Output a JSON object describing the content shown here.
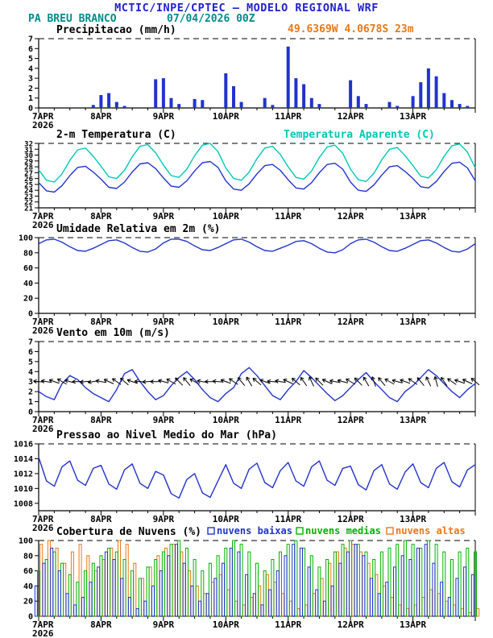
{
  "header": {
    "title": "MCTIC/INPE/CPTEC — MODELO REGIONAL WRF",
    "station": "PA BREU BRANCO",
    "run": "07/04/2026 00Z",
    "location": "49.6369W 4.0678S 23m"
  },
  "colors": {
    "header_blue": "#2222cc",
    "teal": "#008b8b",
    "orange": "#e87818",
    "line_blue": "#2233cc",
    "apparent_cyan": "#00c8b4",
    "cloud_green": "#00b400"
  },
  "x_axis": {
    "day_labels": [
      "7APR",
      "8APR",
      "9APR",
      "10APR",
      "11APR",
      "12APR",
      "13APR"
    ],
    "year_label": "2026",
    "hours_total": 168,
    "dt_hours": 3
  },
  "chart_data": [
    {
      "id": "precipitation",
      "type": "bar",
      "title": "Precipitacao (mm/h)",
      "ylim": [
        0,
        7
      ],
      "yticks": [
        0,
        1,
        2,
        3,
        4,
        5,
        6,
        7
      ],
      "series": [
        {
          "name": "precipitacao",
          "color": "#2233cc",
          "values": [
            0,
            0,
            0,
            0,
            0,
            0,
            0,
            0.3,
            1.3,
            1.5,
            0.6,
            0.2,
            0,
            0,
            0,
            2.9,
            3.0,
            1.0,
            0.4,
            0,
            0.9,
            0.8,
            0,
            0,
            3.5,
            2.2,
            0.6,
            0,
            0,
            1.0,
            0.3,
            0,
            6.2,
            3.0,
            2.4,
            1.0,
            0.4,
            0,
            0,
            0,
            2.8,
            1.2,
            0.4,
            0,
            0,
            0.6,
            0.2,
            0,
            1.2,
            2.6,
            4.0,
            3.2,
            1.5,
            0.8,
            0.4,
            0.2,
            0
          ]
        }
      ]
    },
    {
      "id": "temperature",
      "type": "line",
      "title": "2-m Temperatura (C)",
      "title2": "Temperatura Aparente (C)",
      "ylim": [
        21,
        32
      ],
      "yticks": [
        21,
        22,
        23,
        24,
        25,
        26,
        27,
        28,
        29,
        30,
        31,
        32
      ],
      "series": [
        {
          "name": "2-m temperatura",
          "color": "#2233cc",
          "values": [
            25.3,
            23.9,
            23.7,
            24.8,
            26.5,
            27.9,
            28.1,
            27.1,
            25.9,
            24.5,
            24.3,
            25.4,
            27.1,
            28.5,
            28.7,
            27.7,
            26.1,
            24.7,
            24.5,
            25.6,
            27.3,
            28.7,
            28.9,
            27.9,
            25.6,
            24.2,
            24.0,
            25.1,
            26.8,
            28.2,
            28.4,
            27.4,
            25.8,
            24.4,
            24.2,
            25.3,
            27.0,
            28.4,
            28.6,
            27.6,
            25.4,
            24.0,
            23.8,
            24.9,
            26.6,
            28.0,
            28.2,
            27.2,
            26.0,
            24.6,
            24.4,
            25.5,
            27.2,
            28.6,
            28.8,
            27.8,
            25.6
          ]
        },
        {
          "name": "temperatura aparente",
          "color": "#00c8b4",
          "values": [
            27.5,
            25.7,
            25.4,
            26.8,
            29.1,
            30.9,
            31.2,
            29.8,
            28.1,
            26.3,
            26.0,
            27.4,
            29.7,
            31.5,
            31.8,
            30.4,
            28.3,
            26.5,
            26.2,
            27.6,
            29.9,
            31.7,
            32.0,
            30.6,
            27.8,
            26.0,
            25.7,
            27.1,
            29.4,
            31.2,
            31.5,
            30.1,
            28.0,
            26.2,
            25.9,
            27.3,
            29.6,
            31.4,
            31.7,
            30.3,
            27.6,
            25.8,
            25.5,
            26.9,
            29.2,
            31.0,
            31.3,
            29.9,
            28.2,
            26.4,
            26.1,
            27.5,
            29.8,
            31.6,
            31.9,
            30.5,
            27.8
          ]
        }
      ]
    },
    {
      "id": "humidity",
      "type": "line",
      "title": "Umidade Relativa em 2m (%)",
      "ylim": [
        0,
        100
      ],
      "yticks": [
        0,
        20,
        40,
        60,
        80,
        100
      ],
      "series": [
        {
          "name": "umidade relativa",
          "color": "#2233cc",
          "values": [
            92,
            97,
            98,
            94,
            88,
            83,
            82,
            86,
            91,
            96,
            97,
            93,
            87,
            82,
            81,
            85,
            93,
            98,
            98,
            95,
            89,
            84,
            83,
            87,
            92,
            97,
            98,
            94,
            88,
            83,
            82,
            86,
            90,
            95,
            96,
            92,
            86,
            81,
            80,
            84,
            92,
            97,
            98,
            94,
            88,
            83,
            82,
            86,
            91,
            96,
            97,
            93,
            87,
            82,
            81,
            85,
            92
          ]
        }
      ]
    },
    {
      "id": "wind",
      "type": "line",
      "title": "Vento em 10m (m/s)",
      "ylim": [
        0,
        7
      ],
      "yticks": [
        0,
        1,
        2,
        3,
        4,
        5,
        6,
        7
      ],
      "barb_level": 3,
      "wind_direction_deg": [
        95,
        100,
        110,
        120,
        105,
        90,
        85,
        80,
        100,
        115,
        125,
        130,
        110,
        95,
        85,
        90,
        105,
        120,
        135,
        140,
        120,
        100,
        90,
        95,
        110,
        125,
        140,
        150,
        130,
        110,
        95,
        100,
        115,
        130,
        145,
        155,
        135,
        115,
        100,
        105,
        120,
        135,
        150,
        160,
        140,
        120,
        105,
        110,
        125,
        140,
        155,
        165,
        145,
        125,
        110,
        115,
        130
      ],
      "series": [
        {
          "name": "velocidade do vento",
          "color": "#2233cc",
          "values": [
            2.0,
            1.5,
            1.2,
            2.8,
            3.6,
            3.2,
            2.4,
            1.8,
            1.4,
            1.0,
            2.2,
            3.8,
            4.2,
            3.0,
            2.0,
            1.2,
            1.6,
            2.6,
            3.4,
            4.0,
            3.2,
            2.2,
            1.4,
            1.0,
            1.8,
            2.4,
            3.8,
            4.4,
            3.6,
            2.6,
            1.6,
            1.2,
            2.2,
            3.0,
            4.1,
            3.4,
            2.6,
            1.8,
            1.1,
            1.6,
            2.4,
            3.2,
            3.9,
            3.0,
            2.2,
            1.4,
            1.0,
            2.0,
            2.6,
            3.4,
            4.2,
            3.6,
            2.8,
            2.0,
            1.4,
            2.2,
            2.8
          ]
        }
      ]
    },
    {
      "id": "pressure",
      "type": "line",
      "title": "Pressao ao Nivel Medio do Mar (hPa)",
      "ylim": [
        1007,
        1016
      ],
      "yticks": [
        1008,
        1010,
        1012,
        1014,
        1016
      ],
      "series": [
        {
          "name": "pressao nivel do mar",
          "color": "#2233cc",
          "values": [
            1014.2,
            1011.0,
            1010.3,
            1012.9,
            1013.7,
            1011.1,
            1010.4,
            1012.7,
            1013.1,
            1010.6,
            1009.9,
            1012.5,
            1013.3,
            1010.7,
            1010.0,
            1012.3,
            1011.8,
            1009.3,
            1008.7,
            1011.2,
            1012.0,
            1009.4,
            1008.8,
            1011.0,
            1013.2,
            1010.7,
            1010.0,
            1012.6,
            1013.4,
            1010.8,
            1010.1,
            1012.4,
            1013.5,
            1011.0,
            1010.3,
            1012.9,
            1013.7,
            1011.1,
            1010.4,
            1012.7,
            1013.0,
            1010.5,
            1009.8,
            1012.4,
            1013.2,
            1010.6,
            1009.9,
            1012.2,
            1013.3,
            1010.8,
            1010.1,
            1012.7,
            1013.5,
            1010.9,
            1010.2,
            1012.5,
            1013.2
          ]
        }
      ]
    },
    {
      "id": "clouds",
      "type": "bar",
      "title": "Cobertura de Nuvens (%)",
      "ylim": [
        0,
        100
      ],
      "yticks": [
        0,
        20,
        40,
        60,
        80,
        100
      ],
      "legend": [
        {
          "label": "nuvens baixas",
          "color": "#2233cc"
        },
        {
          "label": "nuvens medias",
          "color": "#00b400"
        },
        {
          "label": "nuvens altas",
          "color": "#e87818"
        }
      ],
      "series": [
        {
          "name": "nuvens altas",
          "color": "#e87818",
          "offset": 3.2,
          "values": [
            95,
            100,
            90,
            70,
            85,
            95,
            80,
            60,
            75,
            90,
            100,
            95,
            70,
            50,
            65,
            80,
            90,
            95,
            85,
            60,
            40,
            30,
            45,
            55,
            35,
            20,
            15,
            25,
            40,
            55,
            45,
            30,
            20,
            10,
            15,
            30,
            50,
            70,
            85,
            90,
            95,
            85,
            70,
            55,
            40,
            25,
            15,
            10,
            15,
            25,
            35,
            30,
            20,
            15,
            10,
            5,
            10
          ]
        },
        {
          "name": "nuvens medias",
          "color": "#00b400",
          "offset": 0,
          "values": [
            60,
            75,
            85,
            70,
            55,
            45,
            60,
            70,
            80,
            90,
            85,
            75,
            60,
            50,
            65,
            75,
            85,
            95,
            100,
            90,
            75,
            60,
            70,
            80,
            90,
            100,
            95,
            85,
            70,
            60,
            75,
            85,
            95,
            100,
            90,
            80,
            65,
            75,
            85,
            95,
            100,
            95,
            85,
            75,
            85,
            90,
            95,
            100,
            95,
            90,
            100,
            95,
            85,
            75,
            85,
            90,
            85
          ]
        },
        {
          "name": "nuvens baixas",
          "color": "#2233cc",
          "offset": -3.2,
          "values": [
            40,
            70,
            90,
            60,
            30,
            15,
            25,
            45,
            65,
            85,
            75,
            50,
            25,
            10,
            20,
            40,
            60,
            80,
            95,
            70,
            40,
            20,
            30,
            50,
            70,
            90,
            85,
            55,
            30,
            15,
            35,
            60,
            80,
            95,
            90,
            65,
            35,
            20,
            40,
            70,
            85,
            95,
            80,
            50,
            30,
            45,
            65,
            80,
            75,
            90,
            95,
            70,
            45,
            25,
            50,
            65,
            55
          ]
        }
      ]
    }
  ]
}
